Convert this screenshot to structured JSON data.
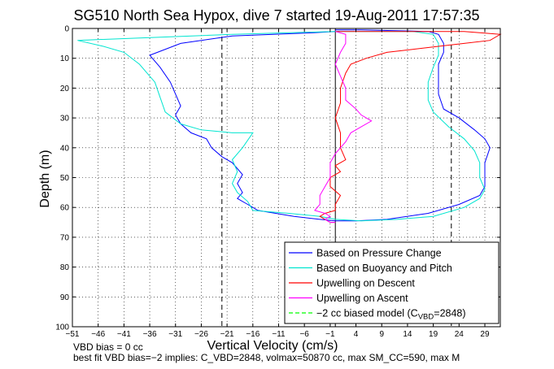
{
  "chart_data": {
    "type": "line",
    "title": "SG510 North Sea Hypox, dive 7 started 19-Aug-2011 17:57:35",
    "xlabel": "Vertical Velocity (cm/s)",
    "ylabel": "Depth (m)",
    "xlim": [
      -51,
      32
    ],
    "ylim": [
      100,
      0
    ],
    "y_reversed": true,
    "grid": true,
    "legend_position": "bottom-right",
    "xticks": [
      -51,
      -46,
      -41,
      -36,
      -31,
      -26,
      -21,
      -16,
      -11,
      -6,
      -1,
      4,
      9,
      14,
      19,
      24,
      29
    ],
    "xtick_labels": [
      "−51",
      "−46",
      "−41",
      "−36",
      "−31",
      "−26",
      "−21",
      "−16",
      "−11",
      "−6",
      "−1",
      "4",
      "9",
      "14",
      "19",
      "24",
      "29"
    ],
    "yticks": [
      0,
      10,
      20,
      30,
      40,
      50,
      60,
      70,
      80,
      90,
      100
    ],
    "ytick_labels": [
      "0",
      "10",
      "20",
      "30",
      "40",
      "50",
      "60",
      "70",
      "80",
      "90",
      "100"
    ],
    "vertical_lines": [
      {
        "x": -22,
        "style": "dashed",
        "color": "#000000"
      },
      {
        "x": 22.5,
        "style": "dashed",
        "color": "#000000"
      },
      {
        "x": 0,
        "style": "solid",
        "color": "#000000"
      }
    ],
    "series": [
      {
        "name": "Based on Pressure Change",
        "color": "#0000ff",
        "style": "solid",
        "points": [
          [
            0,
            1
          ],
          [
            -5,
            1.5
          ],
          [
            -20,
            2.5
          ],
          [
            -30,
            5
          ],
          [
            -36,
            9
          ],
          [
            -34,
            13
          ],
          [
            -32,
            18
          ],
          [
            -31,
            22
          ],
          [
            -30,
            26
          ],
          [
            -31,
            29
          ],
          [
            -30,
            32
          ],
          [
            -28,
            35
          ],
          [
            -25,
            37
          ],
          [
            -24,
            40
          ],
          [
            -22,
            43
          ],
          [
            -20,
            45
          ],
          [
            -19,
            47
          ],
          [
            -18,
            49
          ],
          [
            -19,
            52
          ],
          [
            -18,
            55
          ],
          [
            -19,
            57
          ],
          [
            -17,
            59
          ],
          [
            -15,
            61
          ],
          [
            -8,
            63
          ],
          [
            -3,
            64
          ],
          [
            0,
            64.5
          ],
          [
            4,
            64.5
          ],
          [
            10,
            64
          ],
          [
            18,
            62
          ],
          [
            24,
            59
          ],
          [
            28,
            56
          ],
          [
            29,
            53
          ],
          [
            29,
            50
          ],
          [
            29,
            45
          ],
          [
            30,
            40
          ],
          [
            29,
            37
          ],
          [
            27,
            34
          ],
          [
            24,
            30
          ],
          [
            21,
            27
          ],
          [
            20,
            22
          ],
          [
            20,
            18
          ],
          [
            20,
            12
          ],
          [
            21,
            8
          ],
          [
            21,
            5
          ],
          [
            20,
            2
          ],
          [
            18,
            1
          ],
          [
            5,
            0.5
          ],
          [
            0,
            0.5
          ]
        ]
      },
      {
        "name": "Based on Buoyancy and Pitch",
        "color": "#00e5d0",
        "style": "solid",
        "points": [
          [
            0,
            1
          ],
          [
            -20,
            2
          ],
          [
            -50,
            4
          ],
          [
            -45,
            6
          ],
          [
            -41,
            8
          ],
          [
            -38,
            12
          ],
          [
            -35,
            18
          ],
          [
            -34,
            23
          ],
          [
            -33,
            28
          ],
          [
            -30,
            32
          ],
          [
            -26,
            34
          ],
          [
            -20,
            35
          ],
          [
            -16,
            35
          ],
          [
            -18,
            40
          ],
          [
            -20,
            44
          ],
          [
            -19,
            48
          ],
          [
            -20,
            52
          ],
          [
            -19,
            55
          ],
          [
            -17,
            58
          ],
          [
            -16,
            61
          ],
          [
            -9,
            62
          ],
          [
            -3,
            63
          ],
          [
            0,
            64
          ],
          [
            5,
            64.5
          ],
          [
            12,
            64
          ],
          [
            19,
            63
          ],
          [
            25,
            60
          ],
          [
            28,
            57
          ],
          [
            29,
            54
          ],
          [
            28,
            50
          ],
          [
            28,
            45
          ],
          [
            27,
            41
          ],
          [
            25,
            37
          ],
          [
            22,
            33
          ],
          [
            19,
            28
          ],
          [
            18,
            24
          ],
          [
            18,
            18
          ],
          [
            19,
            13
          ],
          [
            20,
            9
          ],
          [
            20,
            5
          ],
          [
            19,
            2
          ],
          [
            15,
            1
          ],
          [
            5,
            1
          ],
          [
            0,
            1
          ]
        ]
      },
      {
        "name": "Upwelling on Descent",
        "color": "#ff0000",
        "style": "solid",
        "points": [
          [
            0,
            1
          ],
          [
            5,
            1
          ],
          [
            12,
            1
          ],
          [
            25,
            1
          ],
          [
            32,
            2
          ],
          [
            30,
            4
          ],
          [
            25,
            5
          ],
          [
            20,
            6
          ],
          [
            15,
            7
          ],
          [
            10,
            8
          ],
          [
            6,
            10
          ],
          [
            3,
            12
          ],
          [
            2,
            15
          ],
          [
            1,
            20
          ],
          [
            1,
            25
          ],
          [
            0,
            30
          ],
          [
            1,
            35
          ],
          [
            1,
            40
          ],
          [
            2,
            44
          ],
          [
            0,
            46
          ],
          [
            1,
            48
          ],
          [
            -1,
            50
          ],
          [
            -1,
            53
          ],
          [
            1,
            56
          ],
          [
            0,
            59
          ],
          [
            0,
            61
          ],
          [
            -2,
            62
          ],
          [
            -3,
            63
          ],
          [
            -2,
            64
          ],
          [
            -1,
            65
          ],
          [
            0,
            65
          ]
        ]
      },
      {
        "name": "Upwelling on Ascent",
        "color": "#ff00ff",
        "style": "solid",
        "points": [
          [
            0,
            1
          ],
          [
            2,
            2
          ],
          [
            2,
            5
          ],
          [
            1,
            8
          ],
          [
            0,
            12
          ],
          [
            1,
            16
          ],
          [
            2,
            20
          ],
          [
            2,
            24
          ],
          [
            4,
            27
          ],
          [
            5,
            29
          ],
          [
            7,
            31
          ],
          [
            5,
            33
          ],
          [
            3,
            35
          ],
          [
            2,
            38
          ],
          [
            0,
            42
          ],
          [
            -1,
            45
          ],
          [
            -1,
            50
          ],
          [
            -2,
            53
          ],
          [
            -3,
            56
          ],
          [
            -3,
            59
          ],
          [
            -4,
            61
          ],
          [
            -2,
            62
          ],
          [
            -1,
            63
          ],
          [
            -2,
            64
          ],
          [
            -1,
            65
          ],
          [
            0,
            65
          ]
        ]
      },
      {
        "name": "−2 cc biased model (C_VBD=2848)",
        "color": "#00ff00",
        "style": "dashed",
        "points": []
      }
    ]
  },
  "legend": [
    {
      "label": "Based on Pressure Change",
      "color": "#0000ff",
      "dashed": false
    },
    {
      "label": "Based on Buoyancy and Pitch",
      "color": "#00e5d0",
      "dashed": false
    },
    {
      "label": "Upwelling on Descent",
      "color": "#ff0000",
      "dashed": false
    },
    {
      "label": "Upwelling on Ascent",
      "color": "#ff00ff",
      "dashed": false
    },
    {
      "label_prefix": "−2 cc biased model (C",
      "label_sub": "VBD",
      "label_suffix": "=2848)",
      "color": "#00ff00",
      "dashed": true
    }
  ],
  "notes": {
    "line1": "VBD bias = 0 cc",
    "line2": "best fit VBD bias=−2 implies: C_VBD=2848, volmax=50870 cc, max SM_CC=590, max M"
  }
}
